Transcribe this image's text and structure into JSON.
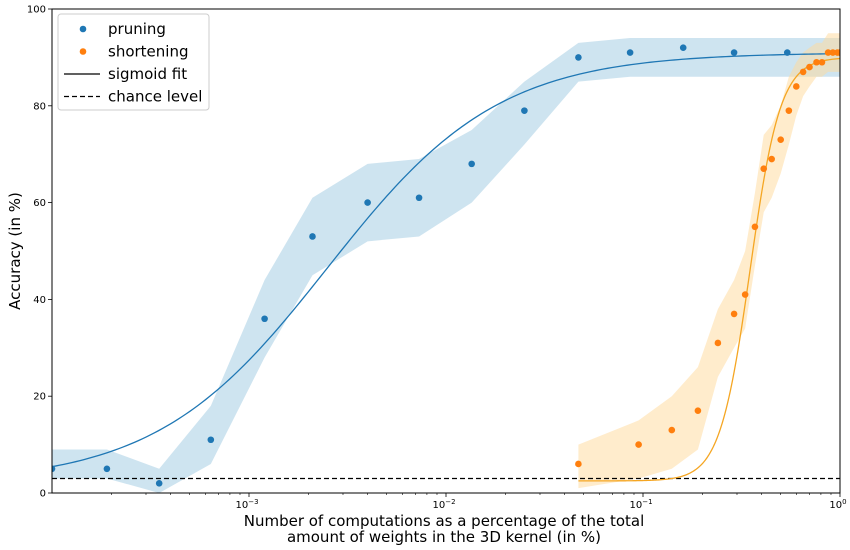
{
  "chart_data": {
    "type": "scatter",
    "x_scale": "log",
    "xlim": [
      0.0001,
      1
    ],
    "ylim": [
      0,
      100
    ],
    "xlabel_lines": [
      "Number of computations as a percentage of the total",
      "amount of weights in the 3D kernel (in %)"
    ],
    "ylabel": "Accuracy (in %)",
    "x_ticks": [
      {
        "value": 0.001,
        "base": "10",
        "exp": "−3"
      },
      {
        "value": 0.01,
        "base": "10",
        "exp": "−2"
      },
      {
        "value": 0.1,
        "base": "10",
        "exp": "−1"
      },
      {
        "value": 1,
        "base": "10",
        "exp": "0"
      }
    ],
    "y_ticks": [
      0,
      20,
      40,
      60,
      80,
      100
    ],
    "legend": {
      "placement": "top-left",
      "items": [
        {
          "label": "pruning",
          "kind": "marker",
          "color": "#1f77b4"
        },
        {
          "label": "shortening",
          "kind": "marker",
          "color": "#ff7f0e"
        },
        {
          "label": "sigmoid fit",
          "kind": "solid-line",
          "color": "#000000"
        },
        {
          "label": "chance level",
          "kind": "dashed-line",
          "color": "#000000"
        }
      ]
    },
    "chance_level": 3,
    "series": [
      {
        "name": "pruning",
        "color": "#1f77b4",
        "band_color": "#9ecae1",
        "x": [
          0.0001,
          0.00019,
          0.00035,
          0.00064,
          0.0012,
          0.0021,
          0.004,
          0.0073,
          0.0135,
          0.025,
          0.047,
          0.086,
          0.16,
          0.29,
          0.54,
          1.0
        ],
        "y": [
          5,
          5,
          2,
          11,
          36,
          53,
          60,
          61,
          68,
          79,
          90,
          91,
          92,
          91,
          91,
          91
        ],
        "band_low": [
          3,
          3,
          0,
          6,
          28,
          45,
          52,
          53,
          60,
          72,
          85,
          86,
          86,
          86,
          86,
          86
        ],
        "band_high": [
          9,
          9,
          5,
          18,
          44,
          61,
          68,
          69,
          75,
          85,
          93,
          94,
          94,
          94,
          94,
          94
        ],
        "fit": {
          "lower": 2,
          "upper": 91,
          "midpoint": 0.0025,
          "slope_per_decade": 2.3
        }
      },
      {
        "name": "shortening",
        "color": "#ff7f0e",
        "band_color": "#ffd99a",
        "fit_color": "#f5a623",
        "x": [
          0.047,
          0.095,
          0.14,
          0.19,
          0.24,
          0.29,
          0.33,
          0.37,
          0.41,
          0.45,
          0.5,
          0.55,
          0.6,
          0.65,
          0.7,
          0.76,
          0.81,
          0.87,
          0.92,
          0.97,
          1.0
        ],
        "y": [
          6,
          10,
          13,
          17,
          31,
          37,
          41,
          55,
          67,
          69,
          73,
          79,
          84,
          87,
          88,
          89,
          89,
          91,
          91,
          91,
          91
        ],
        "band_low": [
          1,
          3,
          5,
          9,
          24,
          30,
          34,
          47,
          58,
          61,
          66,
          72,
          78,
          82,
          84,
          86,
          86,
          87,
          87,
          87,
          87
        ],
        "band_high": [
          10,
          15,
          20,
          26,
          38,
          44,
          50,
          62,
          74,
          76,
          80,
          86,
          89,
          91,
          92,
          93,
          93,
          95,
          95,
          95,
          95
        ],
        "fit": {
          "lower": 2.5,
          "upper": 90,
          "midpoint": 0.35,
          "slope_per_decade": 13
        }
      }
    ]
  }
}
